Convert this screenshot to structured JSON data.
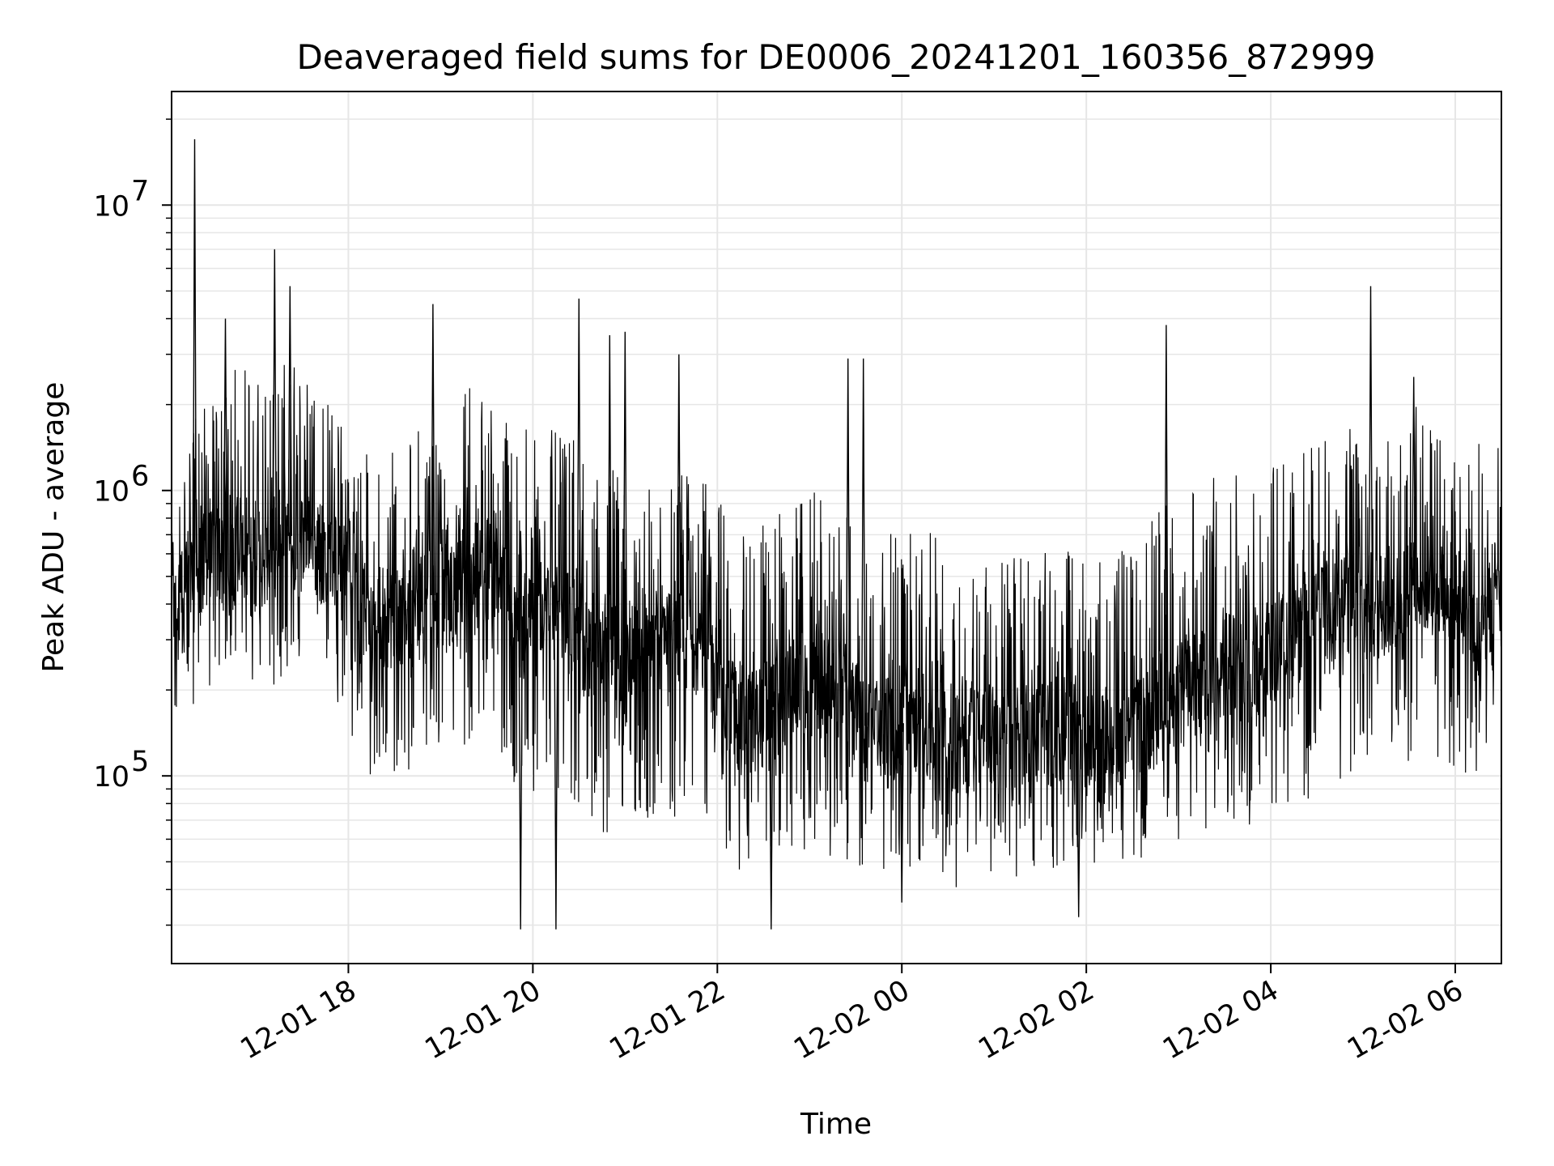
{
  "chart_data": {
    "type": "line",
    "title": "Deaveraged field sums for DE0006_20241201_160356_872999",
    "xlabel": "Time",
    "ylabel": "Peak ADU - average",
    "y_scale": "log",
    "ylim": [
      22000,
      25000000
    ],
    "xlim": [
      "2024-12-01 16:05",
      "2024-12-02 06:30"
    ],
    "grid": true,
    "line_color": "#000000",
    "grid_color": "#e6e6e6",
    "x_ticks": [
      {
        "value": "2024-12-01 18:00",
        "label": "12-01 18"
      },
      {
        "value": "2024-12-01 20:00",
        "label": "12-01 20"
      },
      {
        "value": "2024-12-01 22:00",
        "label": "12-01 22"
      },
      {
        "value": "2024-12-02 00:00",
        "label": "12-02 00"
      },
      {
        "value": "2024-12-02 02:00",
        "label": "12-02 02"
      },
      {
        "value": "2024-12-02 04:00",
        "label": "12-02 04"
      },
      {
        "value": "2024-12-02 06:00",
        "label": "12-02 06"
      }
    ],
    "y_ticks": [
      {
        "value": 100000,
        "base": "10",
        "exp": "5"
      },
      {
        "value": 1000000,
        "base": "10",
        "exp": "6"
      },
      {
        "value": 10000000,
        "base": "10",
        "exp": "7"
      }
    ],
    "series": [
      {
        "x": [
          "2024-12-01 16:05",
          "2024-12-01 16:20",
          "2024-12-01 16:35",
          "2024-12-01 16:50",
          "2024-12-01 17:05",
          "2024-12-01 17:20",
          "2024-12-01 17:35",
          "2024-12-01 17:50",
          "2024-12-01 18:05",
          "2024-12-01 18:20",
          "2024-12-01 18:35",
          "2024-12-01 18:50",
          "2024-12-01 19:05",
          "2024-12-01 19:20",
          "2024-12-01 19:35",
          "2024-12-01 19:50",
          "2024-12-01 20:05",
          "2024-12-01 20:20",
          "2024-12-01 20:35",
          "2024-12-01 20:50",
          "2024-12-01 21:05",
          "2024-12-01 21:20",
          "2024-12-01 21:35",
          "2024-12-01 21:50",
          "2024-12-01 22:05",
          "2024-12-01 22:20",
          "2024-12-01 22:35",
          "2024-12-01 22:50",
          "2024-12-01 23:05",
          "2024-12-01 23:20",
          "2024-12-01 23:35",
          "2024-12-01 23:50",
          "2024-12-02 00:05",
          "2024-12-02 00:20",
          "2024-12-02 00:35",
          "2024-12-02 00:50",
          "2024-12-02 01:05",
          "2024-12-02 01:20",
          "2024-12-02 01:35",
          "2024-12-02 01:50",
          "2024-12-02 02:05",
          "2024-12-02 02:20",
          "2024-12-02 02:35",
          "2024-12-02 02:50",
          "2024-12-02 03:05",
          "2024-12-02 03:20",
          "2024-12-02 03:35",
          "2024-12-02 03:50",
          "2024-12-02 04:05",
          "2024-12-02 04:20",
          "2024-12-02 04:35",
          "2024-12-02 04:50",
          "2024-12-02 05:05",
          "2024-12-02 05:20",
          "2024-12-02 05:35",
          "2024-12-02 05:50",
          "2024-12-02 06:05",
          "2024-12-02 06:20"
        ],
        "y": [
          350000,
          500000,
          600000,
          650000,
          550000,
          700000,
          650000,
          600000,
          400000,
          350000,
          380000,
          420000,
          450000,
          500000,
          550000,
          300000,
          400000,
          350000,
          300000,
          250000,
          280000,
          320000,
          280000,
          300000,
          180000,
          150000,
          170000,
          200000,
          220000,
          200000,
          150000,
          140000,
          160000,
          150000,
          130000,
          140000,
          130000,
          150000,
          140000,
          150000,
          120000,
          130000,
          150000,
          180000,
          200000,
          220000,
          250000,
          230000,
          280000,
          300000,
          350000,
          400000,
          380000,
          420000,
          450000,
          450000,
          400000,
          420000
        ],
        "upper": [
          700000,
          2000000,
          2000000,
          3000000,
          2500000,
          3000000,
          2500000,
          2000000,
          1500000,
          1300000,
          1500000,
          1800000,
          2000000,
          2500000,
          2000000,
          1800000,
          1800000,
          1500000,
          1500000,
          1200000,
          1100000,
          1200000,
          1200000,
          1100000,
          900000,
          800000,
          800000,
          900000,
          1000000,
          900000,
          700000,
          700000,
          800000,
          700000,
          600000,
          600000,
          600000,
          650000,
          600000,
          650000,
          550000,
          600000,
          700000,
          900000,
          1000000,
          1100000,
          1200000,
          1100000,
          1300000,
          1500000,
          1600000,
          1800000,
          1700000,
          1900000,
          2000000,
          1800000,
          1600000,
          1500000
        ],
        "lower": [
          150000,
          180000,
          200000,
          220000,
          200000,
          220000,
          220000,
          200000,
          100000,
          90000,
          100000,
          110000,
          120000,
          130000,
          140000,
          70000,
          90000,
          80000,
          70000,
          60000,
          65000,
          70000,
          65000,
          70000,
          50000,
          45000,
          50000,
          55000,
          55000,
          50000,
          45000,
          42000,
          45000,
          45000,
          40000,
          45000,
          42000,
          45000,
          45000,
          48000,
          42000,
          45000,
          48000,
          55000,
          60000,
          65000,
          70000,
          65000,
          75000,
          80000,
          90000,
          100000,
          95000,
          105000,
          110000,
          110000,
          100000,
          105000
        ],
        "peaks": [
          {
            "x": "2024-12-01 16:20",
            "y": 17000000
          },
          {
            "x": "2024-12-01 16:40",
            "y": 4000000
          },
          {
            "x": "2024-12-01 17:12",
            "y": 7000000
          },
          {
            "x": "2024-12-01 17:22",
            "y": 5200000
          },
          {
            "x": "2024-12-01 18:55",
            "y": 4500000
          },
          {
            "x": "2024-12-01 20:30",
            "y": 4700000
          },
          {
            "x": "2024-12-01 20:50",
            "y": 3500000
          },
          {
            "x": "2024-12-01 21:00",
            "y": 3600000
          },
          {
            "x": "2024-12-01 21:35",
            "y": 3000000
          },
          {
            "x": "2024-12-01 23:25",
            "y": 2900000
          },
          {
            "x": "2024-12-01 23:35",
            "y": 2900000
          },
          {
            "x": "2024-12-02 02:52",
            "y": 3800000
          },
          {
            "x": "2024-12-02 05:05",
            "y": 5200000
          },
          {
            "x": "2024-12-02 05:33",
            "y": 2500000
          },
          {
            "x": "2024-12-01 19:52",
            "y": 29000
          },
          {
            "x": "2024-12-01 20:15",
            "y": 29000
          },
          {
            "x": "2024-12-01 22:35",
            "y": 29000
          },
          {
            "x": "2024-12-02 01:55",
            "y": 32000
          },
          {
            "x": "2024-12-02 00:00",
            "y": 36000
          }
        ]
      }
    ]
  }
}
